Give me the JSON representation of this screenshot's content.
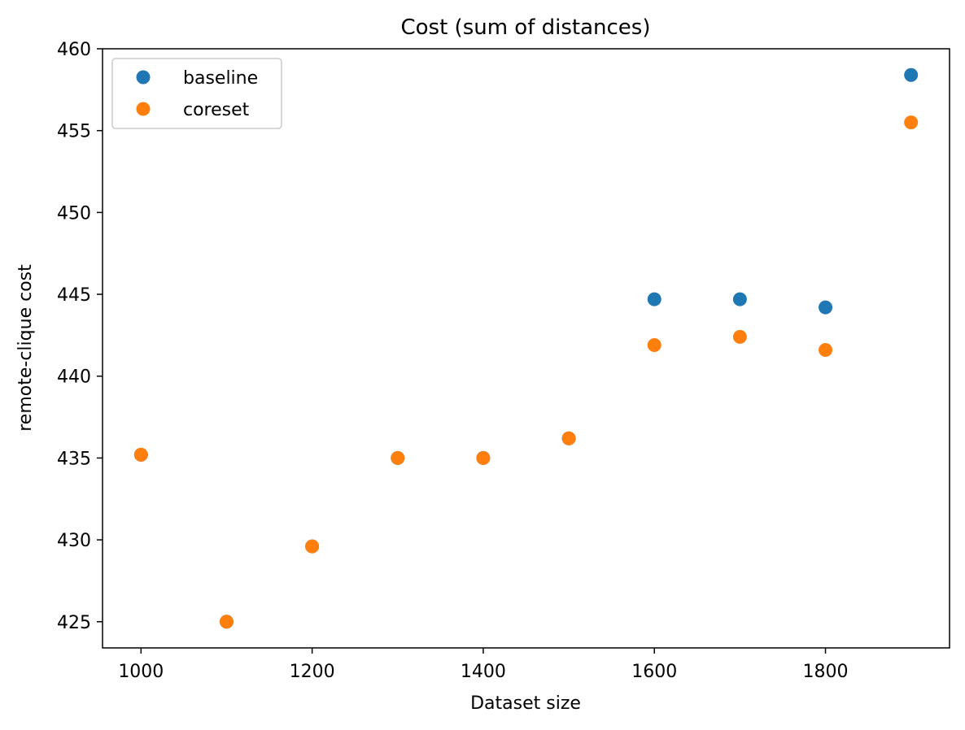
{
  "chart_data": {
    "type": "scatter",
    "title": "Cost (sum of distances)",
    "xlabel": "Dataset size",
    "ylabel": "remote-clique cost",
    "xlim": [
      955,
      1945
    ],
    "ylim": [
      423.4,
      460.0
    ],
    "xticks": [
      1000,
      1200,
      1400,
      1600,
      1800
    ],
    "yticks": [
      425,
      430,
      435,
      440,
      445,
      450,
      455,
      460
    ],
    "grid": false,
    "legend": "top-left",
    "series": [
      {
        "name": "baseline",
        "color": "#1f77b4",
        "x": [
          1000,
          1100,
          1200,
          1300,
          1400,
          1500,
          1600,
          1700,
          1800,
          1900
        ],
        "y": [
          435.2,
          425.0,
          429.6,
          435.0,
          435.0,
          436.2,
          444.7,
          444.7,
          444.2,
          458.4
        ]
      },
      {
        "name": "coreset",
        "color": "#ff7f0e",
        "x": [
          1000,
          1100,
          1200,
          1300,
          1400,
          1500,
          1600,
          1700,
          1800,
          1900
        ],
        "y": [
          435.2,
          425.0,
          429.6,
          435.0,
          435.0,
          436.2,
          441.9,
          442.4,
          441.6,
          455.5
        ]
      }
    ]
  }
}
